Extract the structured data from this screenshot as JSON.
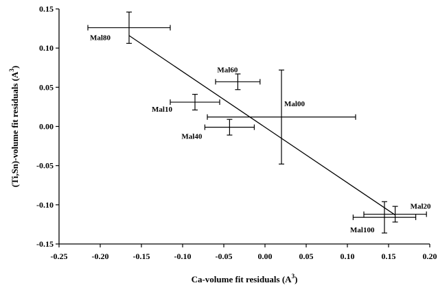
{
  "chart_data": {
    "type": "scatter",
    "xlabel": "Ca-volume fit residuals (A",
    "xlabel_sup": "3",
    "xlabel_tail": ")",
    "ylabel": "(Ti,Sn)-volume fit residuals (A",
    "ylabel_sup": "3",
    "ylabel_tail": ")",
    "xlim": [
      -0.25,
      0.2
    ],
    "ylim": [
      -0.15,
      0.15
    ],
    "xticks": [
      "-0.25",
      "-0.20",
      "-0.15",
      "-0.10",
      "-0.05",
      "0.00",
      "0.05",
      "0.10",
      "0.15",
      "0.20"
    ],
    "xtick_values": [
      -0.25,
      -0.2,
      -0.15,
      -0.1,
      -0.05,
      0.0,
      0.05,
      0.1,
      0.15,
      0.2
    ],
    "yticks": [
      "0.15",
      "0.10",
      "0.05",
      "0.00",
      "-0.05",
      "-0.10",
      "-0.15"
    ],
    "ytick_values": [
      0.15,
      0.1,
      0.05,
      0.0,
      -0.05,
      -0.1,
      -0.15
    ],
    "grid": false,
    "points": [
      {
        "label": "Mal80",
        "x": -0.165,
        "y": 0.126,
        "xerr": 0.05,
        "yerr": 0.02
      },
      {
        "label": "Mal60",
        "x": -0.033,
        "y": 0.057,
        "xerr": 0.027,
        "yerr": 0.01
      },
      {
        "label": "Mal10",
        "x": -0.085,
        "y": 0.031,
        "xerr": 0.03,
        "yerr": 0.01
      },
      {
        "label": "Mal00",
        "x": 0.02,
        "y": 0.012,
        "xerr": 0.09,
        "yerr": 0.06
      },
      {
        "label": "Mal40",
        "x": -0.043,
        "y": -0.001,
        "xerr": 0.03,
        "yerr": 0.01
      },
      {
        "label": "Mal20",
        "x": 0.158,
        "y": -0.112,
        "xerr": 0.038,
        "yerr": 0.01
      },
      {
        "label": "Mal100",
        "x": 0.145,
        "y": -0.116,
        "xerr": 0.038,
        "yerr": 0.02
      }
    ],
    "fit_line": {
      "x": [
        -0.165,
        0.158
      ],
      "y": [
        0.116,
        -0.113
      ]
    }
  }
}
